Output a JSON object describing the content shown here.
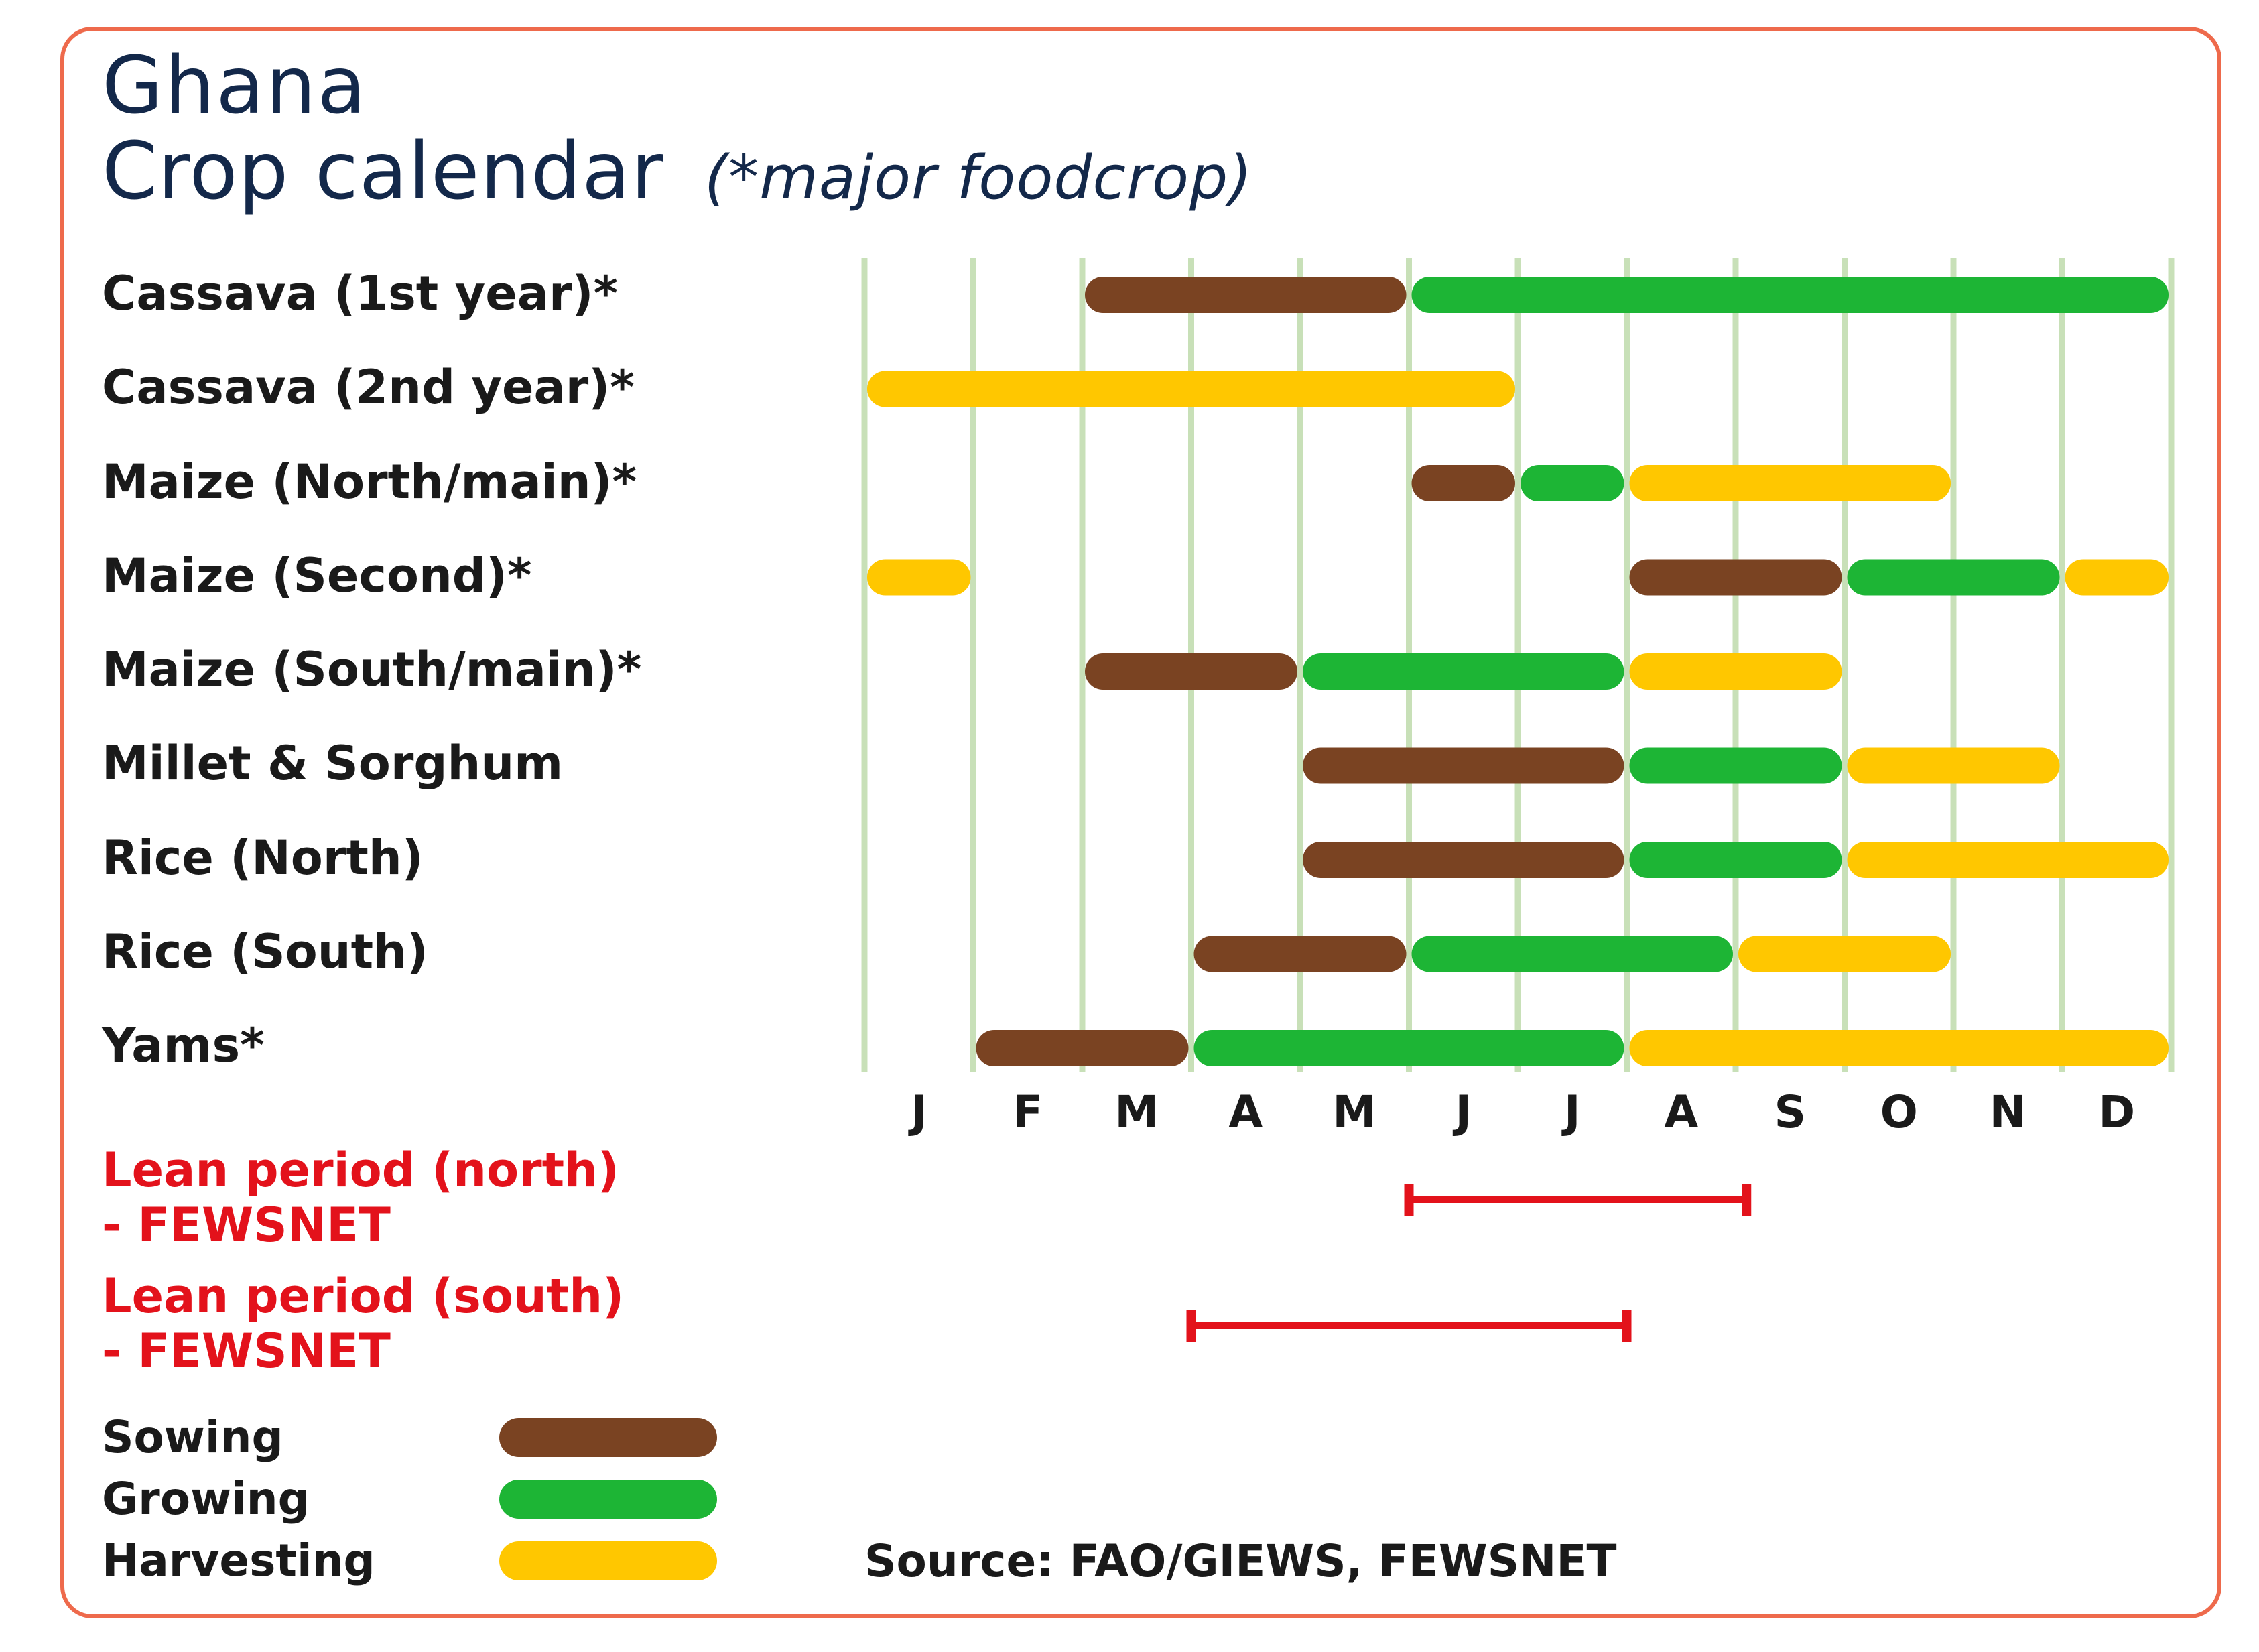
{
  "colors": {
    "border": "#ee6a4c",
    "title": "#13284a",
    "sowing": "#7a4322",
    "growing": "#1db535",
    "harvesting": "#ffc700",
    "grid": "#c8e0b8",
    "lean": "#e3121b"
  },
  "chart_data": {
    "type": "gantt",
    "title": "Ghana",
    "subtitle": "Crop calendar",
    "note": "(*major foodcrop)",
    "months": [
      "J",
      "F",
      "M",
      "A",
      "M",
      "J",
      "J",
      "A",
      "S",
      "O",
      "N",
      "D"
    ],
    "crops": [
      {
        "label": "Cassava (1st year)*",
        "segments": [
          {
            "phase": "sowing",
            "start": 2.0,
            "end": 5.0
          },
          {
            "phase": "growing",
            "start": 5.0,
            "end": 12.0
          }
        ]
      },
      {
        "label": "Cassava (2nd year)*",
        "segments": [
          {
            "phase": "harvesting",
            "start": 0.0,
            "end": 6.0
          }
        ]
      },
      {
        "label": "Maize (North/main)*",
        "segments": [
          {
            "phase": "sowing",
            "start": 5.0,
            "end": 6.0
          },
          {
            "phase": "growing",
            "start": 6.0,
            "end": 7.0
          },
          {
            "phase": "harvesting",
            "start": 7.0,
            "end": 10.0
          }
        ]
      },
      {
        "label": "Maize (Second)*",
        "segments": [
          {
            "phase": "harvesting",
            "start": 0.0,
            "end": 1.0
          },
          {
            "phase": "sowing",
            "start": 7.0,
            "end": 9.0
          },
          {
            "phase": "growing",
            "start": 9.0,
            "end": 11.0
          },
          {
            "phase": "harvesting",
            "start": 11.0,
            "end": 12.0
          }
        ]
      },
      {
        "label": "Maize (South/main)*",
        "segments": [
          {
            "phase": "sowing",
            "start": 2.0,
            "end": 4.0
          },
          {
            "phase": "growing",
            "start": 4.0,
            "end": 7.0
          },
          {
            "phase": "harvesting",
            "start": 7.0,
            "end": 9.0
          }
        ]
      },
      {
        "label": "Millet & Sorghum",
        "segments": [
          {
            "phase": "sowing",
            "start": 4.0,
            "end": 7.0
          },
          {
            "phase": "growing",
            "start": 7.0,
            "end": 9.0
          },
          {
            "phase": "harvesting",
            "start": 9.0,
            "end": 11.0
          }
        ]
      },
      {
        "label": "Rice (North)",
        "segments": [
          {
            "phase": "sowing",
            "start": 4.0,
            "end": 7.0
          },
          {
            "phase": "growing",
            "start": 7.0,
            "end": 9.0
          },
          {
            "phase": "harvesting",
            "start": 9.0,
            "end": 12.0
          }
        ]
      },
      {
        "label": "Rice (South)",
        "segments": [
          {
            "phase": "sowing",
            "start": 3.0,
            "end": 5.0
          },
          {
            "phase": "growing",
            "start": 5.0,
            "end": 8.0
          },
          {
            "phase": "harvesting",
            "start": 8.0,
            "end": 10.0
          }
        ]
      },
      {
        "label": "Yams*",
        "segments": [
          {
            "phase": "sowing",
            "start": 1.0,
            "end": 3.0
          },
          {
            "phase": "growing",
            "start": 3.0,
            "end": 7.0
          },
          {
            "phase": "harvesting",
            "start": 7.0,
            "end": 12.0
          }
        ]
      }
    ],
    "lean_periods": [
      {
        "label_line1": "Lean period (north)",
        "label_line2": "- FEWSNET",
        "start": 5.0,
        "end": 8.1
      },
      {
        "label_line1": "Lean period (south)",
        "label_line2": "- FEWSNET",
        "start": 3.0,
        "end": 7.0
      }
    ],
    "legend": [
      {
        "label": "Sowing",
        "phase": "sowing"
      },
      {
        "label": "Growing",
        "phase": "growing"
      },
      {
        "label": "Harvesting",
        "phase": "harvesting"
      }
    ],
    "source": "Source: FAO/GIEWS, FEWSNET"
  }
}
